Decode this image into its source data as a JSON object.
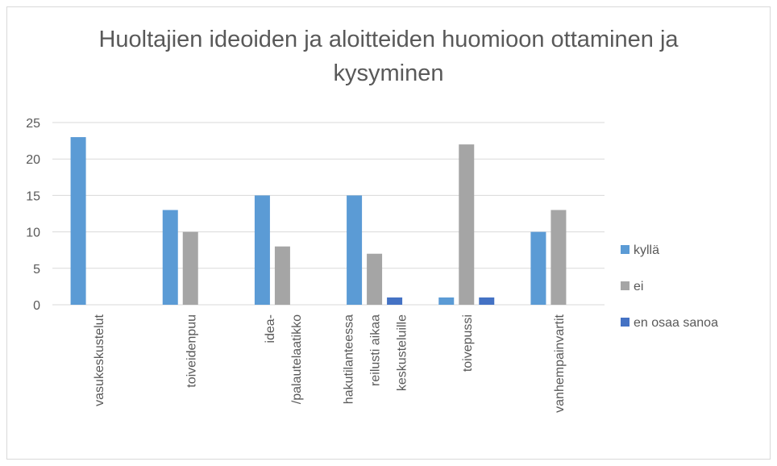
{
  "chart_data": {
    "type": "bar",
    "title": "Huoltajien ideoiden ja aloitteiden huomioon ottaminen ja kysyminen",
    "categories": [
      "vasukeskustelut",
      "toiveidenpuu",
      "idea- /palautelaatikko",
      "hakutilanteessa reilusti aikaa keskusteluille",
      "toivepussi",
      "vanhempainvartit"
    ],
    "series": [
      {
        "name": "kyllä",
        "color": "#5b9bd5",
        "values": [
          23,
          13,
          15,
          15,
          1,
          10
        ]
      },
      {
        "name": "ei",
        "color": "#a5a5a5",
        "values": [
          0,
          10,
          8,
          7,
          22,
          13
        ]
      },
      {
        "name": "en osaa sanoa",
        "color": "#4472c4",
        "values": [
          0,
          0,
          0,
          1,
          1,
          0
        ]
      }
    ],
    "ylim": [
      0,
      25
    ],
    "yticks": [
      0,
      5,
      10,
      15,
      20,
      25
    ],
    "grid": true,
    "legend": "right"
  }
}
